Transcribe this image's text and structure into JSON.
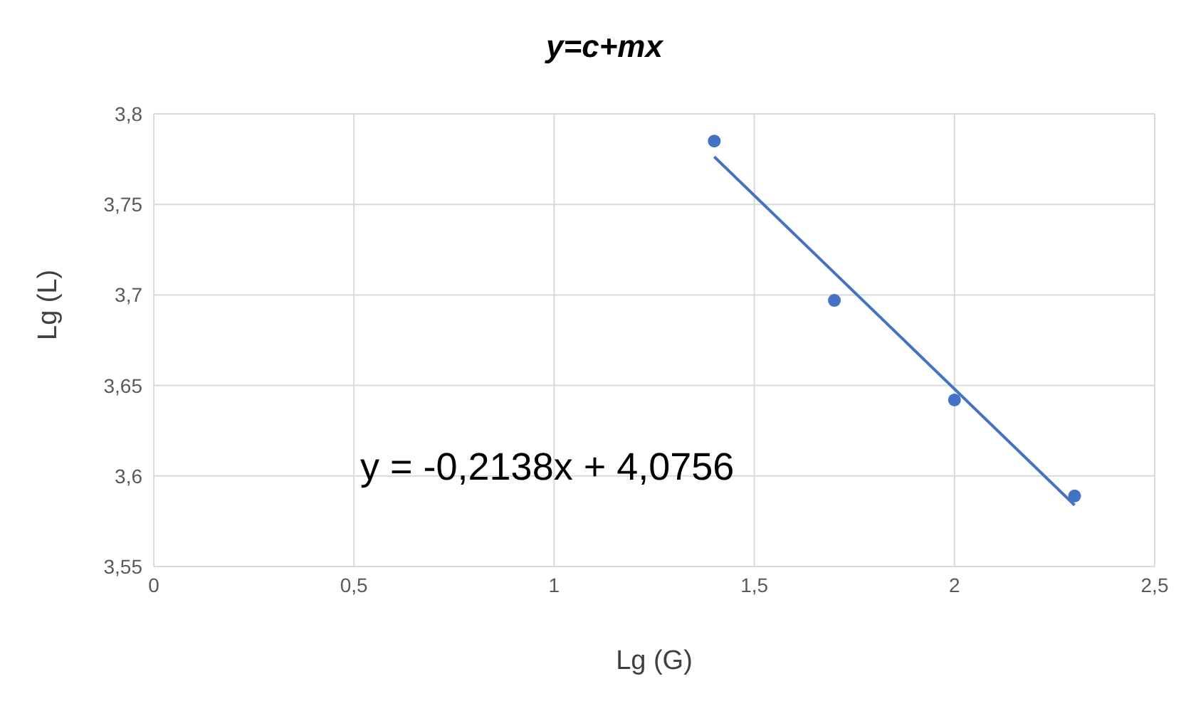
{
  "chart_data": {
    "type": "scatter",
    "title": "y=c+mx",
    "xlabel": "Lg (G)",
    "ylabel": "Lg (L)",
    "series": [
      {
        "color": "#4472c4",
        "x": [
          1.4,
          1.7,
          2.0,
          2.3
        ],
        "values": [
          3.785,
          3.697,
          3.642,
          3.589
        ]
      },
      {
        "type": "line",
        "marker": "none",
        "color": "#4472c4",
        "x": [
          1.4,
          2.3
        ],
        "values": [
          3.7763,
          3.5839
        ]
      }
    ],
    "annotations": [
      "y = -0,2138x + 4,0756"
    ],
    "xlim": [
      0,
      2.5
    ],
    "xticks": [
      0,
      {
        "value": 0.5,
        "label": "0,5"
      },
      1,
      {
        "value": 1.5,
        "label": "1,5"
      },
      2,
      {
        "value": 2.5,
        "label": "2,5"
      }
    ],
    "ylim": [
      3.55,
      3.8
    ],
    "yticks": [
      {
        "value": 3.55,
        "label": "3,55"
      },
      {
        "value": 3.6,
        "label": "3,6"
      },
      {
        "value": 3.65,
        "label": "3,65"
      },
      {
        "value": 3.7,
        "label": "3,7"
      },
      {
        "value": 3.75,
        "label": "3,75"
      },
      {
        "value": 3.8,
        "label": "3,8"
      }
    ],
    "grid": true,
    "marker": "circle",
    "legend": false
  }
}
